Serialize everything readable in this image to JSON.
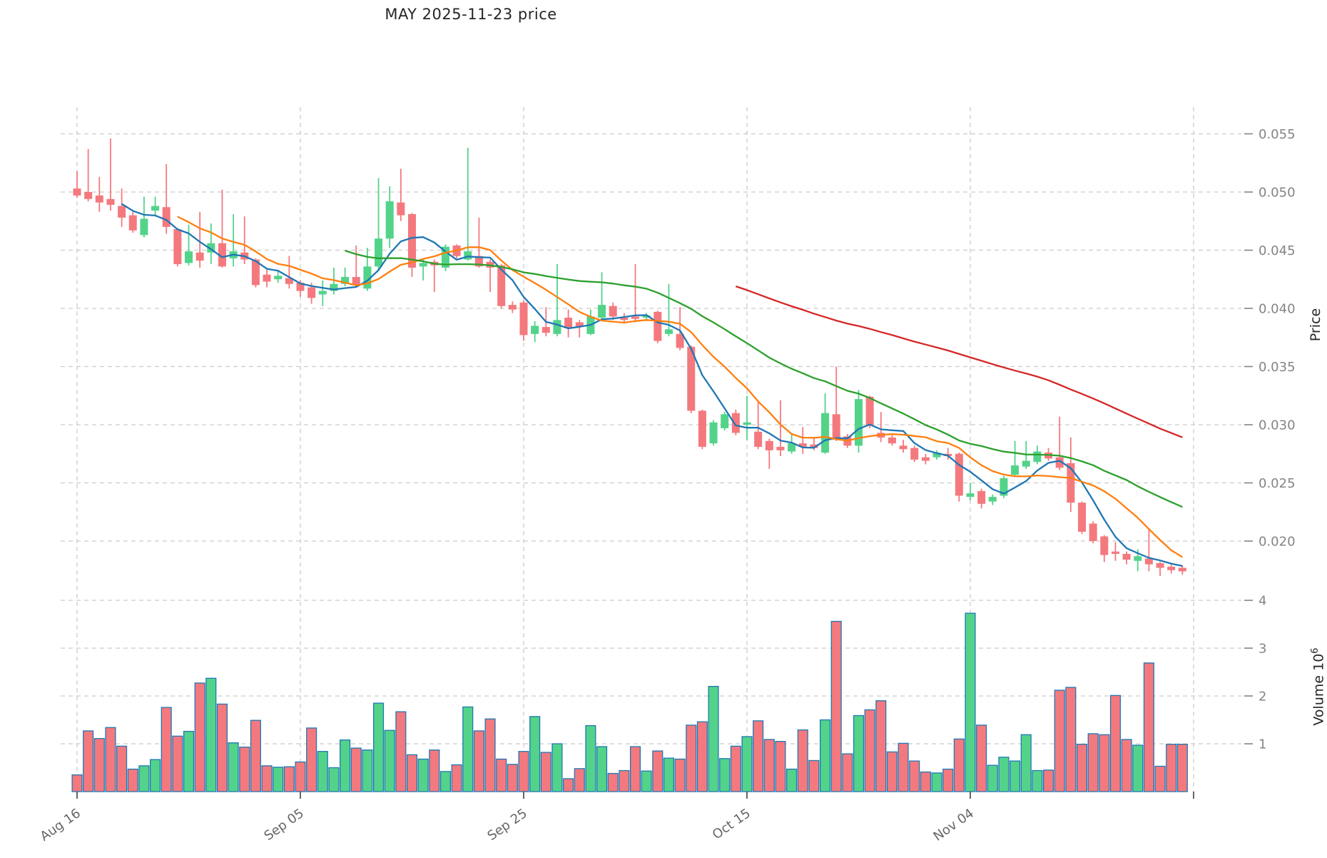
{
  "title": "MAY  2025-11-23  price",
  "price_axis": {
    "label": "Price",
    "tick_labels": [
      "0.020",
      "0.025",
      "0.030",
      "0.035",
      "0.040",
      "0.045",
      "0.050",
      "0.055"
    ]
  },
  "volume_axis": {
    "label_prefix": "Volume 10",
    "label_sup": "6",
    "tick_labels": [
      "1",
      "2",
      "3",
      "4"
    ]
  },
  "x_axis": {
    "ticks": [
      {
        "label": "Aug 16",
        "index": 0
      },
      {
        "label": "Sep 05",
        "index": 20
      },
      {
        "label": "Sep 25",
        "index": 40
      },
      {
        "label": "Oct 15",
        "index": 60
      },
      {
        "label": "Nov 04",
        "index": 80
      }
    ],
    "unlabeled_gridline_index": 100
  },
  "colors": {
    "up": "#53d38a",
    "down": "#f4797e",
    "volume_edge": "#1f77b4",
    "grid": "#cccccc",
    "right_tick_text": "#848484",
    "date_tick_text": "#666666"
  },
  "chart_data": {
    "type": "candlestick+volume",
    "title": "MAY  2025-11-23  price",
    "ylabel": "Price",
    "ylabel_volume": "Volume 10^6",
    "price_ylim": [
      0.0165,
      0.0573
    ],
    "volume_ylim_millions": [
      0,
      4.39
    ],
    "grid": true,
    "dates": [
      "2025-08-16",
      "2025-08-17",
      "2025-08-18",
      "2025-08-19",
      "2025-08-20",
      "2025-08-21",
      "2025-08-22",
      "2025-08-23",
      "2025-08-24",
      "2025-08-25",
      "2025-08-26",
      "2025-08-27",
      "2025-08-28",
      "2025-08-29",
      "2025-08-30",
      "2025-08-31",
      "2025-09-01",
      "2025-09-02",
      "2025-09-03",
      "2025-09-04",
      "2025-09-05",
      "2025-09-06",
      "2025-09-07",
      "2025-09-08",
      "2025-09-09",
      "2025-09-10",
      "2025-09-11",
      "2025-09-12",
      "2025-09-13",
      "2025-09-14",
      "2025-09-15",
      "2025-09-16",
      "2025-09-17",
      "2025-09-18",
      "2025-09-19",
      "2025-09-20",
      "2025-09-21",
      "2025-09-22",
      "2025-09-23",
      "2025-09-24",
      "2025-09-25",
      "2025-09-26",
      "2025-09-27",
      "2025-09-28",
      "2025-09-29",
      "2025-09-30",
      "2025-10-01",
      "2025-10-02",
      "2025-10-03",
      "2025-10-04",
      "2025-10-05",
      "2025-10-06",
      "2025-10-07",
      "2025-10-08",
      "2025-10-09",
      "2025-10-10",
      "2025-10-11",
      "2025-10-12",
      "2025-10-13",
      "2025-10-14",
      "2025-10-15",
      "2025-10-16",
      "2025-10-17",
      "2025-10-18",
      "2025-10-19",
      "2025-10-20",
      "2025-10-21",
      "2025-10-22",
      "2025-10-23",
      "2025-10-24",
      "2025-10-25",
      "2025-10-26",
      "2025-10-27",
      "2025-10-28",
      "2025-10-29",
      "2025-10-30",
      "2025-10-31",
      "2025-11-01",
      "2025-11-02",
      "2025-11-03",
      "2025-11-04",
      "2025-11-05",
      "2025-11-06",
      "2025-11-07",
      "2025-11-08",
      "2025-11-09",
      "2025-11-10",
      "2025-11-11",
      "2025-11-12",
      "2025-11-13",
      "2025-11-14",
      "2025-11-15",
      "2025-11-16",
      "2025-11-17",
      "2025-11-18",
      "2025-11-19",
      "2025-11-20",
      "2025-11-21",
      "2025-11-22",
      "2025-11-23"
    ],
    "open": [
      0.0503,
      0.05,
      0.0497,
      0.0494,
      0.0488,
      0.048,
      0.0463,
      0.0484,
      0.0487,
      0.0468,
      0.0439,
      0.0448,
      0.0448,
      0.0456,
      0.0443,
      0.0448,
      0.0442,
      0.0429,
      0.0425,
      0.0426,
      0.0422,
      0.0418,
      0.0412,
      0.0415,
      0.0421,
      0.0427,
      0.0417,
      0.0436,
      0.046,
      0.0491,
      0.0481,
      0.0436,
      0.044,
      0.0435,
      0.0454,
      0.0442,
      0.0445,
      0.044,
      0.0437,
      0.0403,
      0.0405,
      0.0378,
      0.0384,
      0.0378,
      0.0392,
      0.0388,
      0.0378,
      0.0392,
      0.0402,
      0.0392,
      0.0393,
      0.0392,
      0.0397,
      0.0378,
      0.0378,
      0.0367,
      0.0312,
      0.0284,
      0.0297,
      0.031,
      0.03,
      0.0294,
      0.0286,
      0.0281,
      0.0277,
      0.0284,
      0.0283,
      0.0276,
      0.0309,
      0.029,
      0.0282,
      0.0324,
      0.0293,
      0.0289,
      0.0282,
      0.028,
      0.0272,
      0.0272,
      0.0275,
      0.0275,
      0.0238,
      0.0243,
      0.0234,
      0.0239,
      0.0257,
      0.0264,
      0.0268,
      0.0276,
      0.0272,
      0.0267,
      0.0233,
      0.0215,
      0.0204,
      0.0191,
      0.0189,
      0.0183,
      0.0185,
      0.0181,
      0.0178,
      0.0177
    ],
    "high": [
      0.0518,
      0.0537,
      0.0513,
      0.0546,
      0.0503,
      0.0483,
      0.0496,
      0.0496,
      0.0524,
      0.0469,
      0.0472,
      0.0483,
      0.0473,
      0.0502,
      0.0481,
      0.0479,
      0.0443,
      0.0434,
      0.0433,
      0.0445,
      0.0424,
      0.0422,
      0.0424,
      0.0435,
      0.0435,
      0.0454,
      0.0452,
      0.0512,
      0.0505,
      0.052,
      0.0482,
      0.0442,
      0.0442,
      0.0455,
      0.0455,
      0.0538,
      0.0478,
      0.0442,
      0.0438,
      0.0406,
      0.0407,
      0.0389,
      0.0401,
      0.0438,
      0.0399,
      0.039,
      0.0399,
      0.0431,
      0.0405,
      0.0396,
      0.0438,
      0.0396,
      0.0398,
      0.0421,
      0.0401,
      0.0368,
      0.0313,
      0.0304,
      0.0311,
      0.0313,
      0.0325,
      0.032,
      0.0288,
      0.0321,
      0.0293,
      0.0298,
      0.0289,
      0.0327,
      0.035,
      0.0292,
      0.033,
      0.0325,
      0.0311,
      0.0291,
      0.0287,
      0.0282,
      0.0275,
      0.0278,
      0.028,
      0.0276,
      0.025,
      0.0245,
      0.024,
      0.0256,
      0.0286,
      0.0286,
      0.0282,
      0.028,
      0.0307,
      0.0289,
      0.0234,
      0.0217,
      0.0205,
      0.0199,
      0.0191,
      0.0193,
      0.0211,
      0.0182,
      0.018,
      0.0179
    ],
    "low": [
      0.0495,
      0.0492,
      0.0483,
      0.0484,
      0.047,
      0.0465,
      0.0461,
      0.0479,
      0.0464,
      0.0436,
      0.0437,
      0.0435,
      0.0438,
      0.0435,
      0.0436,
      0.0438,
      0.0418,
      0.0418,
      0.0422,
      0.0417,
      0.041,
      0.0404,
      0.0402,
      0.0412,
      0.0419,
      0.0418,
      0.0415,
      0.0433,
      0.0452,
      0.0475,
      0.0427,
      0.0424,
      0.0414,
      0.0432,
      0.0443,
      0.0441,
      0.0435,
      0.0414,
      0.04,
      0.0396,
      0.0372,
      0.0371,
      0.0376,
      0.0376,
      0.0375,
      0.0375,
      0.0377,
      0.039,
      0.039,
      0.0388,
      0.0388,
      0.0389,
      0.037,
      0.0376,
      0.0364,
      0.031,
      0.0279,
      0.0282,
      0.0295,
      0.0291,
      0.0287,
      0.0279,
      0.0262,
      0.0273,
      0.0275,
      0.0275,
      0.0278,
      0.0275,
      0.0286,
      0.028,
      0.0276,
      0.0297,
      0.0285,
      0.0282,
      0.0276,
      0.0268,
      0.0266,
      0.027,
      0.027,
      0.0234,
      0.0235,
      0.0228,
      0.0231,
      0.0237,
      0.0255,
      0.0262,
      0.0266,
      0.0269,
      0.0261,
      0.0225,
      0.0206,
      0.0198,
      0.0182,
      0.0183,
      0.018,
      0.0174,
      0.0174,
      0.017,
      0.0172,
      0.0171
    ],
    "close": [
      0.0497,
      0.0494,
      0.0491,
      0.0489,
      0.0478,
      0.0467,
      0.0477,
      0.0488,
      0.047,
      0.0438,
      0.0449,
      0.0441,
      0.0456,
      0.0436,
      0.0449,
      0.0442,
      0.042,
      0.0423,
      0.0428,
      0.0421,
      0.0415,
      0.0409,
      0.0415,
      0.0421,
      0.0427,
      0.042,
      0.0436,
      0.046,
      0.0492,
      0.048,
      0.0435,
      0.0439,
      0.0437,
      0.0453,
      0.0445,
      0.0449,
      0.0436,
      0.0435,
      0.0402,
      0.0399,
      0.0377,
      0.0385,
      0.0379,
      0.039,
      0.0383,
      0.0384,
      0.0393,
      0.0403,
      0.0393,
      0.039,
      0.0391,
      0.0394,
      0.0372,
      0.0382,
      0.0366,
      0.0312,
      0.0281,
      0.0302,
      0.0309,
      0.0293,
      0.0302,
      0.0281,
      0.0278,
      0.0278,
      0.0284,
      0.0281,
      0.028,
      0.031,
      0.0288,
      0.0282,
      0.0322,
      0.0299,
      0.0289,
      0.0284,
      0.0279,
      0.027,
      0.0269,
      0.0276,
      0.0273,
      0.0239,
      0.0241,
      0.0232,
      0.0238,
      0.0254,
      0.0265,
      0.0269,
      0.0277,
      0.0271,
      0.0263,
      0.0233,
      0.0208,
      0.02,
      0.0188,
      0.0189,
      0.0184,
      0.0187,
      0.018,
      0.0177,
      0.0175,
      0.0174
    ],
    "volume_millions": [
      0.35,
      1.27,
      1.11,
      1.34,
      0.95,
      0.47,
      0.54,
      0.67,
      1.76,
      1.16,
      1.26,
      2.27,
      2.37,
      1.83,
      1.02,
      0.93,
      1.49,
      0.54,
      0.51,
      0.52,
      0.62,
      1.33,
      0.84,
      0.5,
      1.08,
      0.91,
      0.87,
      1.85,
      1.28,
      1.67,
      0.77,
      0.68,
      0.87,
      0.42,
      0.56,
      1.77,
      1.27,
      1.52,
      0.68,
      0.57,
      0.84,
      1.57,
      0.82,
      1.0,
      0.27,
      0.48,
      1.38,
      0.94,
      0.38,
      0.44,
      0.94,
      0.43,
      0.85,
      0.7,
      0.68,
      1.39,
      1.46,
      2.2,
      0.69,
      0.95,
      1.15,
      1.48,
      1.09,
      1.05,
      0.47,
      1.29,
      0.65,
      1.5,
      3.56,
      0.79,
      1.59,
      1.71,
      1.9,
      0.83,
      1.01,
      0.64,
      0.41,
      0.39,
      0.47,
      1.1,
      3.73,
      1.39,
      0.55,
      0.72,
      0.64,
      1.19,
      0.44,
      0.45,
      2.12,
      2.18,
      0.99,
      1.21,
      1.19,
      2.01,
      1.09,
      0.97,
      2.69,
      0.53,
      0.99,
      0.99
    ],
    "moving_averages": [
      {
        "name": "sma5",
        "window": 5,
        "color": "#1f77b4"
      },
      {
        "name": "sma10",
        "window": 10,
        "color": "#ff7f0e"
      },
      {
        "name": "sma25",
        "window": 25,
        "color": "#2ca02c"
      },
      {
        "name": "sma60",
        "window": 60,
        "color": "#d62728"
      }
    ],
    "legend_position": "none"
  }
}
